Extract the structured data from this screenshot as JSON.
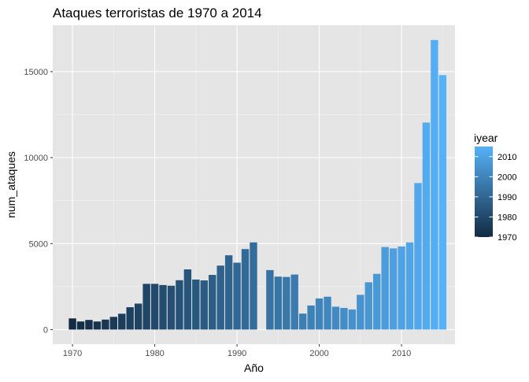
{
  "chart_data": {
    "type": "bar",
    "title": "Ataques terroristas de 1970 a 2014",
    "xlabel": "Año",
    "ylabel": "num_ataques",
    "xlim": [
      1967.6,
      2016.5
    ],
    "ylim": [
      -850,
      17700
    ],
    "x_ticks": [
      1970,
      1980,
      1990,
      2000,
      2010
    ],
    "y_ticks": [
      0,
      5000,
      10000,
      15000
    ],
    "x_tick_labels": [
      "1970",
      "1980",
      "1990",
      "2000",
      "2010"
    ],
    "y_tick_labels": [
      "0",
      "5000",
      "10000",
      "15000"
    ],
    "grid": true,
    "panel_background": "#E5E5E5",
    "legend": {
      "title": "iyear",
      "placement": "right",
      "ticks": [
        1970,
        1980,
        1990,
        2000,
        2010
      ],
      "tick_labels": [
        "1970",
        "1980",
        "1990",
        "2000",
        "2010"
      ],
      "range": [
        1970,
        2015
      ],
      "color_low": "#132B43",
      "color_high": "#56B1F7"
    },
    "x": [
      1970,
      1971,
      1972,
      1973,
      1974,
      1975,
      1976,
      1977,
      1978,
      1979,
      1980,
      1981,
      1982,
      1983,
      1984,
      1985,
      1986,
      1987,
      1988,
      1989,
      1990,
      1991,
      1992,
      1994,
      1995,
      1996,
      1997,
      1998,
      1999,
      2000,
      2001,
      2002,
      2003,
      2004,
      2005,
      2006,
      2007,
      2008,
      2009,
      2010,
      2011,
      2012,
      2013,
      2014,
      2015
    ],
    "values": [
      650,
      470,
      560,
      470,
      580,
      740,
      920,
      1300,
      1510,
      2660,
      2660,
      2590,
      2550,
      2870,
      3500,
      2910,
      2860,
      3180,
      3720,
      4320,
      3890,
      4680,
      5070,
      3460,
      3080,
      3060,
      3200,
      930,
      1400,
      1810,
      1910,
      1330,
      1260,
      1170,
      2020,
      2750,
      3240,
      4800,
      4720,
      4830,
      5070,
      8520,
      12040,
      16840,
      14800
    ]
  }
}
